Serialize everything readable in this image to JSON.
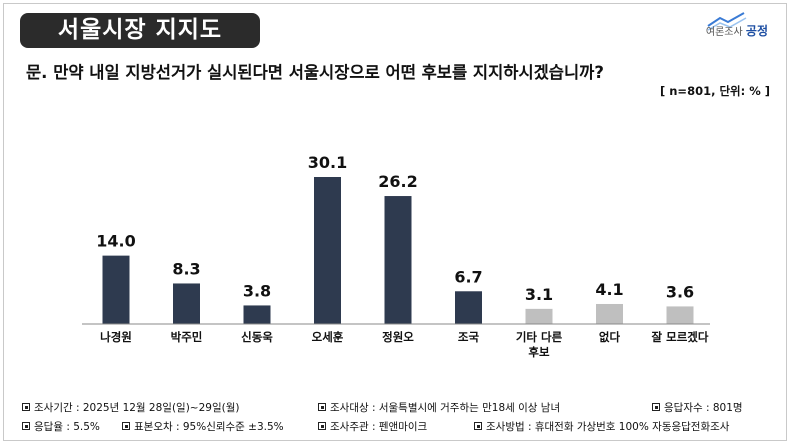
{
  "header": {
    "title": "서울시장 지지도",
    "logo_small": "여론조사",
    "logo_brand": "공정",
    "question": "문. 만약 내일 지방선거가 실시된다면 서울시장으로 어떤 후보를 지지하시겠습니까?",
    "unit_note": "[ n=801, 단위: % ]"
  },
  "chart_data": {
    "type": "bar",
    "categories": [
      "나경원",
      "박주민",
      "신동욱",
      "오세훈",
      "정원오",
      "조국",
      "기타 다른 후보",
      "없다",
      "잘 모르겠다"
    ],
    "category_lines": [
      [
        "나경원"
      ],
      [
        "박주민"
      ],
      [
        "신동욱"
      ],
      [
        "오세훈"
      ],
      [
        "정원오"
      ],
      [
        "조국"
      ],
      [
        "기타 다른",
        "후보"
      ],
      [
        "없다"
      ],
      [
        "잘 모르겠다"
      ]
    ],
    "values": [
      14.0,
      8.3,
      3.8,
      30.1,
      26.2,
      6.7,
      3.1,
      4.1,
      3.6
    ],
    "value_labels": [
      "14.0",
      "8.3",
      "3.8",
      "30.1",
      "26.2",
      "6.7",
      "3.1",
      "4.1",
      "3.6"
    ],
    "bar_colors": [
      "#2e3a4f",
      "#2e3a4f",
      "#2e3a4f",
      "#2e3a4f",
      "#2e3a4f",
      "#2e3a4f",
      "#bfbfbf",
      "#bfbfbf",
      "#bfbfbf"
    ],
    "ylim": [
      0,
      30.1
    ],
    "grid": false
  },
  "footer": {
    "survey_period": "조사기간 : 2025년 12월 28일(일)~29일(월)",
    "target": "조사대상 : 서울특별시에 거주하는 만18세 이상 남녀",
    "respondents": "응답자수 : 801명",
    "response_rate": "응답율 : 5.5%",
    "sampling_error": "표본오차 : 95%신뢰수준 ±3.5%",
    "organizer": "조사주관 : 펜앤마이크",
    "method": "조사방법 : 휴대전화 가상번호 100% 자동응답전화조사"
  }
}
